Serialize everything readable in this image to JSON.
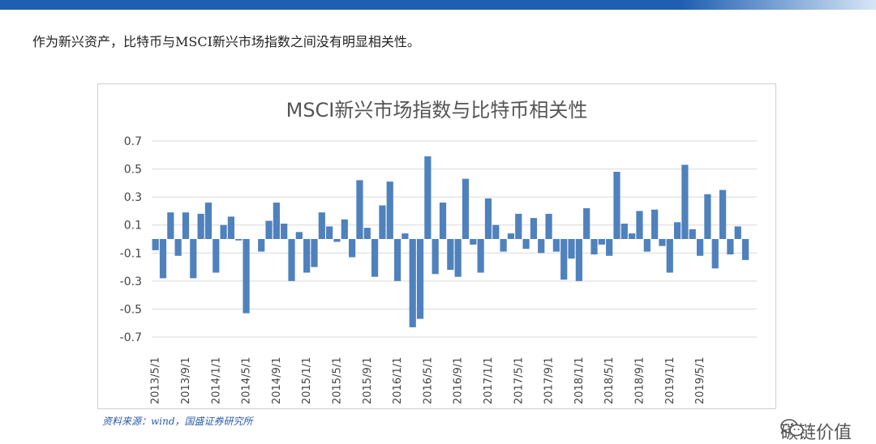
{
  "intro_text": "作为新兴资产，比特币与MSCI新兴市场指数之间没有明显相关性。",
  "source_text": "资料来源：wind，国盛证券研究所",
  "watermark_text": "碳链价值",
  "colors": {
    "bar": "#4f81bd",
    "grid": "#d9d9d9",
    "banner": "#1f5fb2"
  },
  "chart_data": {
    "type": "bar",
    "title": "MSCI新兴市场指数与比特币相关性",
    "ylim": [
      -0.7,
      0.7
    ],
    "yticks": [
      0.7,
      0.5,
      0.3,
      0.1,
      -0.1,
      -0.3,
      -0.5,
      -0.7
    ],
    "ytick_labels": [
      "0.7",
      "0.5",
      "0.3",
      "0.1",
      "-0.1",
      "-0.3",
      "-0.5",
      "-0.7"
    ],
    "grid": true,
    "categories": [
      "2013/5/1",
      "2013/6/1",
      "2013/7/1",
      "2013/8/1",
      "2013/9/1",
      "2013/10/1",
      "2013/11/1",
      "2013/12/1",
      "2014/1/1",
      "2014/2/1",
      "2014/3/1",
      "2014/4/1",
      "2014/5/1",
      "2014/6/1",
      "2014/7/1",
      "2014/8/1",
      "2014/9/1",
      "2014/10/1",
      "2014/11/1",
      "2014/12/1",
      "2015/1/1",
      "2015/2/1",
      "2015/3/1",
      "2015/4/1",
      "2015/5/1",
      "2015/6/1",
      "2015/7/1",
      "2015/8/1",
      "2015/9/1",
      "2015/10/1",
      "2015/11/1",
      "2015/12/1",
      "2016/1/1",
      "2016/2/1",
      "2016/3/1",
      "2016/4/1",
      "2016/5/1",
      "2016/6/1",
      "2016/7/1",
      "2016/8/1",
      "2016/9/1",
      "2016/10/1",
      "2016/11/1",
      "2016/12/1",
      "2017/1/1",
      "2017/2/1",
      "2017/3/1",
      "2017/4/1",
      "2017/5/1",
      "2017/6/1",
      "2017/7/1",
      "2017/8/1",
      "2017/9/1",
      "2017/10/1",
      "2017/11/1",
      "2017/12/1",
      "2018/1/1",
      "2018/2/1",
      "2018/3/1",
      "2018/4/1",
      "2018/5/1",
      "2018/6/1",
      "2018/7/1",
      "2018/8/1",
      "2018/9/1",
      "2018/10/1",
      "2018/11/1",
      "2018/12/1",
      "2019/1/1",
      "2019/2/1",
      "2019/3/1",
      "2019/4/1",
      "2019/5/1",
      "2019/6/1",
      "2019/7/1",
      "2019/8/1",
      "2019/9/1",
      "2019/10/1",
      "2019/11/1",
      "2019/12/1"
    ],
    "visible_xtick_labels": [
      "2013/5/1",
      "2013/9/1",
      "2014/1/1",
      "2014/5/1",
      "2014/9/1",
      "2015/1/1",
      "2015/5/1",
      "2015/9/1",
      "2016/1/1",
      "2016/5/1",
      "2016/9/1",
      "2017/1/1",
      "2017/5/1",
      "2017/9/1",
      "2018/1/1",
      "2018/5/1",
      "2018/9/1",
      "2019/1/1",
      "2019/5/1"
    ],
    "values": [
      -0.08,
      -0.28,
      0.19,
      -0.12,
      0.19,
      -0.28,
      0.18,
      0.26,
      -0.24,
      0.1,
      0.16,
      -0.01,
      -0.53,
      0.0,
      -0.09,
      0.13,
      0.26,
      0.11,
      -0.3,
      0.05,
      -0.24,
      -0.2,
      0.19,
      0.09,
      -0.02,
      0.14,
      -0.13,
      0.42,
      0.08,
      -0.27,
      0.24,
      0.41,
      -0.3,
      0.04,
      -0.63,
      -0.57,
      0.59,
      -0.25,
      0.26,
      -0.22,
      -0.27,
      0.43,
      -0.04,
      -0.24,
      0.29,
      0.1,
      -0.09,
      0.04,
      0.18,
      -0.07,
      0.15,
      -0.1,
      0.18,
      -0.09,
      -0.29,
      -0.14,
      -0.3,
      0.22,
      -0.11,
      -0.04,
      -0.12,
      0.48,
      0.11,
      0.04,
      0.2,
      -0.09,
      0.21,
      -0.05,
      -0.24,
      0.12,
      0.53,
      0.07,
      -0.12,
      0.32,
      -0.21,
      0.35,
      -0.11,
      0.09,
      -0.15,
      0.0
    ]
  }
}
